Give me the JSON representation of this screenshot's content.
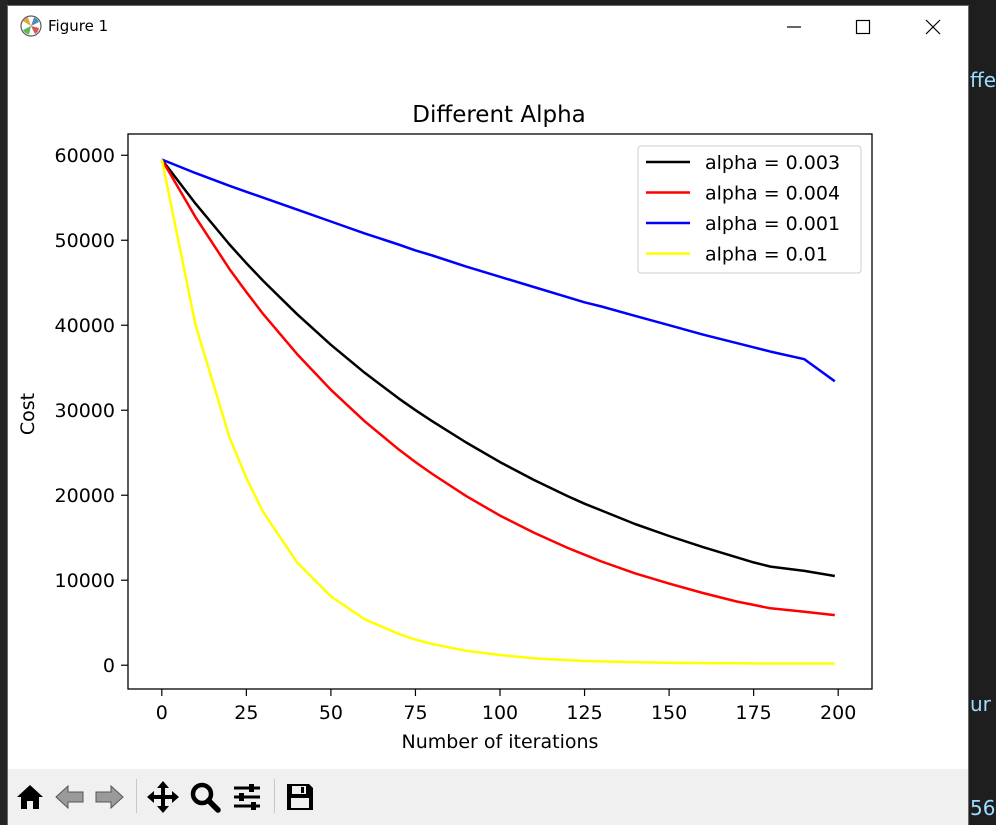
{
  "window": {
    "title": "Figure 1",
    "controls": {
      "minimize": "minimize",
      "maximize": "maximize",
      "close": "close"
    }
  },
  "background_fragments": [
    "ffe",
    "ur",
    "56"
  ],
  "toolbar": {
    "tools": [
      {
        "name": "home-icon",
        "tooltip": "Reset original view"
      },
      {
        "name": "back-icon",
        "tooltip": "Back to previous view"
      },
      {
        "name": "forward-icon",
        "tooltip": "Forward to next view"
      },
      {
        "name": "pan-icon",
        "tooltip": "Pan axes"
      },
      {
        "name": "zoom-icon",
        "tooltip": "Zoom to rectangle"
      },
      {
        "name": "configure-subplots-icon",
        "tooltip": "Configure subplots"
      },
      {
        "name": "save-icon",
        "tooltip": "Save the figure"
      }
    ]
  },
  "chart_data": {
    "type": "line",
    "title": "Different Alpha",
    "xlabel": "Number of iterations",
    "ylabel": "Cost",
    "xlim": [
      -10,
      210
    ],
    "ylim": [
      -2800,
      62500
    ],
    "xticks": [
      0,
      25,
      50,
      75,
      100,
      125,
      150,
      175,
      200
    ],
    "yticks": [
      0,
      10000,
      20000,
      30000,
      40000,
      50000,
      60000
    ],
    "grid": false,
    "legend_position": "top-right",
    "x": [
      0,
      10,
      20,
      25,
      30,
      40,
      50,
      60,
      70,
      75,
      80,
      90,
      100,
      110,
      120,
      125,
      130,
      140,
      150,
      160,
      170,
      175,
      180,
      190,
      199
    ],
    "series": [
      {
        "name": "alpha = 0.003",
        "color": "#000000",
        "values": [
          59500,
          54300,
          49500,
          47300,
          45200,
          41300,
          37700,
          34400,
          31400,
          30000,
          28700,
          26200,
          23900,
          21800,
          19900,
          19000,
          18200,
          16600,
          15200,
          13900,
          12700,
          12100,
          11600,
          11100,
          10500
        ]
      },
      {
        "name": "alpha = 0.004",
        "color": "#ff0000",
        "values": [
          59500,
          52700,
          46600,
          43900,
          41300,
          36600,
          32400,
          28700,
          25400,
          23900,
          22500,
          19900,
          17600,
          15600,
          13800,
          13000,
          12200,
          10800,
          9600,
          8500,
          7500,
          7100,
          6700,
          6300,
          5900
        ]
      },
      {
        "name": "alpha = 0.001",
        "color": "#0000ff",
        "values": [
          59500,
          57900,
          56400,
          55700,
          55000,
          53600,
          52200,
          50800,
          49500,
          48800,
          48200,
          46900,
          45700,
          44500,
          43300,
          42700,
          42200,
          41100,
          40000,
          38900,
          37900,
          37400,
          36900,
          36000,
          33400
        ]
      },
      {
        "name": "alpha = 0.01",
        "color": "#ffff00",
        "values": [
          59500,
          40000,
          26800,
          22000,
          18000,
          12100,
          8100,
          5400,
          3700,
          3000,
          2500,
          1700,
          1200,
          800,
          600,
          500,
          450,
          350,
          300,
          250,
          220,
          200,
          200,
          200,
          200
        ]
      }
    ]
  }
}
